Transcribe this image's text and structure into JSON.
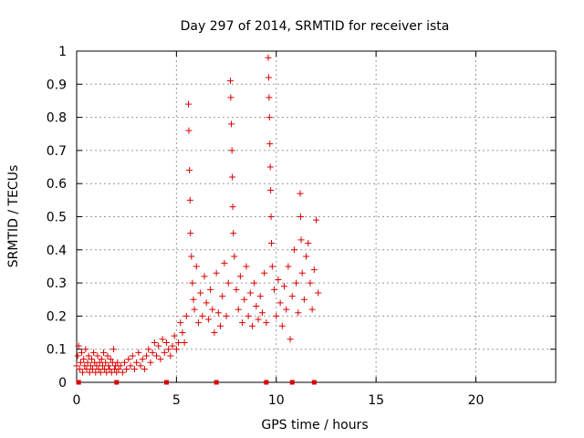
{
  "chart_data": {
    "type": "scatter",
    "title": "Day 297 of 2014, SRMTID for receiver ista",
    "xlabel": "GPS time / hours",
    "ylabel": "SRMTID / TECUs",
    "xlim": [
      0,
      24
    ],
    "ylim": [
      0,
      1
    ],
    "xticks": [
      0,
      5,
      10,
      15,
      20
    ],
    "xtick_labels": [
      "0",
      "5",
      "10",
      "15",
      "20"
    ],
    "yticks": [
      0,
      0.1,
      0.2,
      0.3,
      0.4,
      0.5,
      0.6,
      0.7,
      0.8,
      0.9,
      1.0
    ],
    "ytick_labels": [
      "0",
      "0.1",
      "0.2",
      "0.3",
      "0.4",
      "0.5",
      "0.6",
      "0.7",
      "0.8",
      "0.9",
      "1"
    ],
    "grid": true,
    "marker": "+",
    "color": "#dd0000",
    "baseline_markers_x": [
      0.1,
      2.0,
      4.5,
      7.0,
      9.5,
      10.8,
      11.9
    ],
    "series": [
      {
        "name": "SRMTID",
        "points": [
          [
            0.0,
            0.05
          ],
          [
            0.05,
            0.08
          ],
          [
            0.1,
            0.11
          ],
          [
            0.15,
            0.04
          ],
          [
            0.2,
            0.06
          ],
          [
            0.25,
            0.09
          ],
          [
            0.3,
            0.03
          ],
          [
            0.35,
            0.07
          ],
          [
            0.4,
            0.05
          ],
          [
            0.45,
            0.1
          ],
          [
            0.5,
            0.04
          ],
          [
            0.55,
            0.06
          ],
          [
            0.6,
            0.08
          ],
          [
            0.65,
            0.03
          ],
          [
            0.7,
            0.05
          ],
          [
            0.75,
            0.07
          ],
          [
            0.8,
            0.04
          ],
          [
            0.85,
            0.09
          ],
          [
            0.9,
            0.06
          ],
          [
            0.95,
            0.03
          ],
          [
            1.0,
            0.05
          ],
          [
            1.05,
            0.08
          ],
          [
            1.1,
            0.04
          ],
          [
            1.15,
            0.06
          ],
          [
            1.2,
            0.03
          ],
          [
            1.25,
            0.07
          ],
          [
            1.3,
            0.05
          ],
          [
            1.35,
            0.09
          ],
          [
            1.4,
            0.04
          ],
          [
            1.45,
            0.06
          ],
          [
            1.5,
            0.03
          ],
          [
            1.55,
            0.08
          ],
          [
            1.6,
            0.05
          ],
          [
            1.65,
            0.04
          ],
          [
            1.7,
            0.07
          ],
          [
            1.75,
            0.03
          ],
          [
            1.8,
            0.06
          ],
          [
            1.85,
            0.1
          ],
          [
            1.9,
            0.04
          ],
          [
            1.95,
            0.05
          ],
          [
            2.0,
            0.03
          ],
          [
            2.05,
            0.06
          ],
          [
            2.1,
            0.04
          ],
          [
            2.2,
            0.05
          ],
          [
            2.3,
            0.03
          ],
          [
            2.4,
            0.06
          ],
          [
            2.5,
            0.04
          ],
          [
            2.6,
            0.07
          ],
          [
            2.7,
            0.05
          ],
          [
            2.8,
            0.08
          ],
          [
            2.9,
            0.04
          ],
          [
            3.0,
            0.06
          ],
          [
            3.1,
            0.09
          ],
          [
            3.2,
            0.05
          ],
          [
            3.3,
            0.07
          ],
          [
            3.4,
            0.04
          ],
          [
            3.5,
            0.08
          ],
          [
            3.6,
            0.1
          ],
          [
            3.7,
            0.06
          ],
          [
            3.8,
            0.09
          ],
          [
            3.9,
            0.12
          ],
          [
            4.0,
            0.08
          ],
          [
            4.1,
            0.11
          ],
          [
            4.2,
            0.07
          ],
          [
            4.3,
            0.13
          ],
          [
            4.4,
            0.09
          ],
          [
            4.5,
            0.12
          ],
          [
            4.6,
            0.1
          ],
          [
            4.7,
            0.08
          ],
          [
            4.8,
            0.11
          ],
          [
            4.9,
            0.14
          ],
          [
            5.0,
            0.1
          ],
          [
            5.1,
            0.12
          ],
          [
            5.2,
            0.18
          ],
          [
            5.3,
            0.15
          ],
          [
            5.4,
            0.12
          ],
          [
            5.5,
            0.2
          ],
          [
            5.6,
            0.84
          ],
          [
            5.62,
            0.76
          ],
          [
            5.65,
            0.64
          ],
          [
            5.68,
            0.55
          ],
          [
            5.7,
            0.45
          ],
          [
            5.75,
            0.38
          ],
          [
            5.8,
            0.3
          ],
          [
            5.85,
            0.25
          ],
          [
            5.9,
            0.22
          ],
          [
            6.0,
            0.35
          ],
          [
            6.1,
            0.18
          ],
          [
            6.2,
            0.27
          ],
          [
            6.3,
            0.2
          ],
          [
            6.4,
            0.32
          ],
          [
            6.5,
            0.24
          ],
          [
            6.6,
            0.19
          ],
          [
            6.7,
            0.28
          ],
          [
            6.8,
            0.22
          ],
          [
            6.9,
            0.15
          ],
          [
            7.0,
            0.33
          ],
          [
            7.1,
            0.21
          ],
          [
            7.2,
            0.17
          ],
          [
            7.3,
            0.26
          ],
          [
            7.4,
            0.36
          ],
          [
            7.5,
            0.2
          ],
          [
            7.6,
            0.3
          ],
          [
            7.7,
            0.91
          ],
          [
            7.72,
            0.86
          ],
          [
            7.75,
            0.78
          ],
          [
            7.78,
            0.7
          ],
          [
            7.8,
            0.62
          ],
          [
            7.82,
            0.53
          ],
          [
            7.85,
            0.45
          ],
          [
            7.9,
            0.38
          ],
          [
            8.0,
            0.28
          ],
          [
            8.1,
            0.22
          ],
          [
            8.2,
            0.32
          ],
          [
            8.3,
            0.18
          ],
          [
            8.4,
            0.25
          ],
          [
            8.5,
            0.35
          ],
          [
            8.6,
            0.2
          ],
          [
            8.7,
            0.27
          ],
          [
            8.8,
            0.17
          ],
          [
            8.9,
            0.3
          ],
          [
            9.0,
            0.23
          ],
          [
            9.1,
            0.19
          ],
          [
            9.2,
            0.26
          ],
          [
            9.3,
            0.21
          ],
          [
            9.4,
            0.33
          ],
          [
            9.5,
            0.18
          ],
          [
            9.6,
            0.98
          ],
          [
            9.62,
            0.92
          ],
          [
            9.64,
            0.86
          ],
          [
            9.66,
            0.8
          ],
          [
            9.68,
            0.72
          ],
          [
            9.7,
            0.65
          ],
          [
            9.72,
            0.58
          ],
          [
            9.74,
            0.5
          ],
          [
            9.76,
            0.42
          ],
          [
            9.8,
            0.35
          ],
          [
            9.9,
            0.28
          ],
          [
            10.0,
            0.2
          ],
          [
            10.1,
            0.31
          ],
          [
            10.2,
            0.24
          ],
          [
            10.3,
            0.17
          ],
          [
            10.4,
            0.29
          ],
          [
            10.5,
            0.22
          ],
          [
            10.6,
            0.35
          ],
          [
            10.7,
            0.13
          ],
          [
            10.8,
            0.26
          ],
          [
            10.9,
            0.4
          ],
          [
            11.0,
            0.3
          ],
          [
            11.1,
            0.21
          ],
          [
            11.2,
            0.57
          ],
          [
            11.22,
            0.5
          ],
          [
            11.25,
            0.43
          ],
          [
            11.3,
            0.33
          ],
          [
            11.4,
            0.25
          ],
          [
            11.5,
            0.38
          ],
          [
            11.6,
            0.42
          ],
          [
            11.7,
            0.3
          ],
          [
            11.8,
            0.22
          ],
          [
            11.9,
            0.34
          ],
          [
            12.0,
            0.49
          ],
          [
            12.1,
            0.27
          ]
        ]
      }
    ]
  }
}
